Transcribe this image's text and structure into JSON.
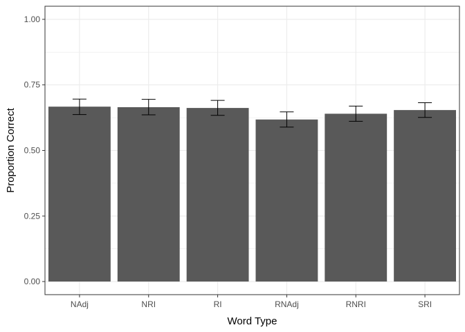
{
  "chart_data": {
    "type": "bar",
    "title": "",
    "xlabel": "Word Type",
    "ylabel": "Proportion Correct",
    "categories": [
      "NAdj",
      "NRI",
      "RI",
      "RNAdj",
      "RNRI",
      "SRI"
    ],
    "values": [
      0.667,
      0.665,
      0.662,
      0.618,
      0.64,
      0.654
    ],
    "error_low": [
      0.637,
      0.636,
      0.634,
      0.589,
      0.611,
      0.626
    ],
    "error_high": [
      0.696,
      0.695,
      0.691,
      0.647,
      0.669,
      0.682
    ],
    "ylim": [
      -0.05,
      1.05
    ],
    "yticks": [
      0.0,
      0.25,
      0.5,
      0.75,
      1.0
    ],
    "ytick_labels": [
      "0.00",
      "0.25",
      "0.50",
      "0.75",
      "1.00"
    ],
    "grid": true,
    "bar_color": "#595959",
    "error_bar_color": "#000000",
    "grid_color": "#ebebeb",
    "panel_border_color": "#333333"
  }
}
